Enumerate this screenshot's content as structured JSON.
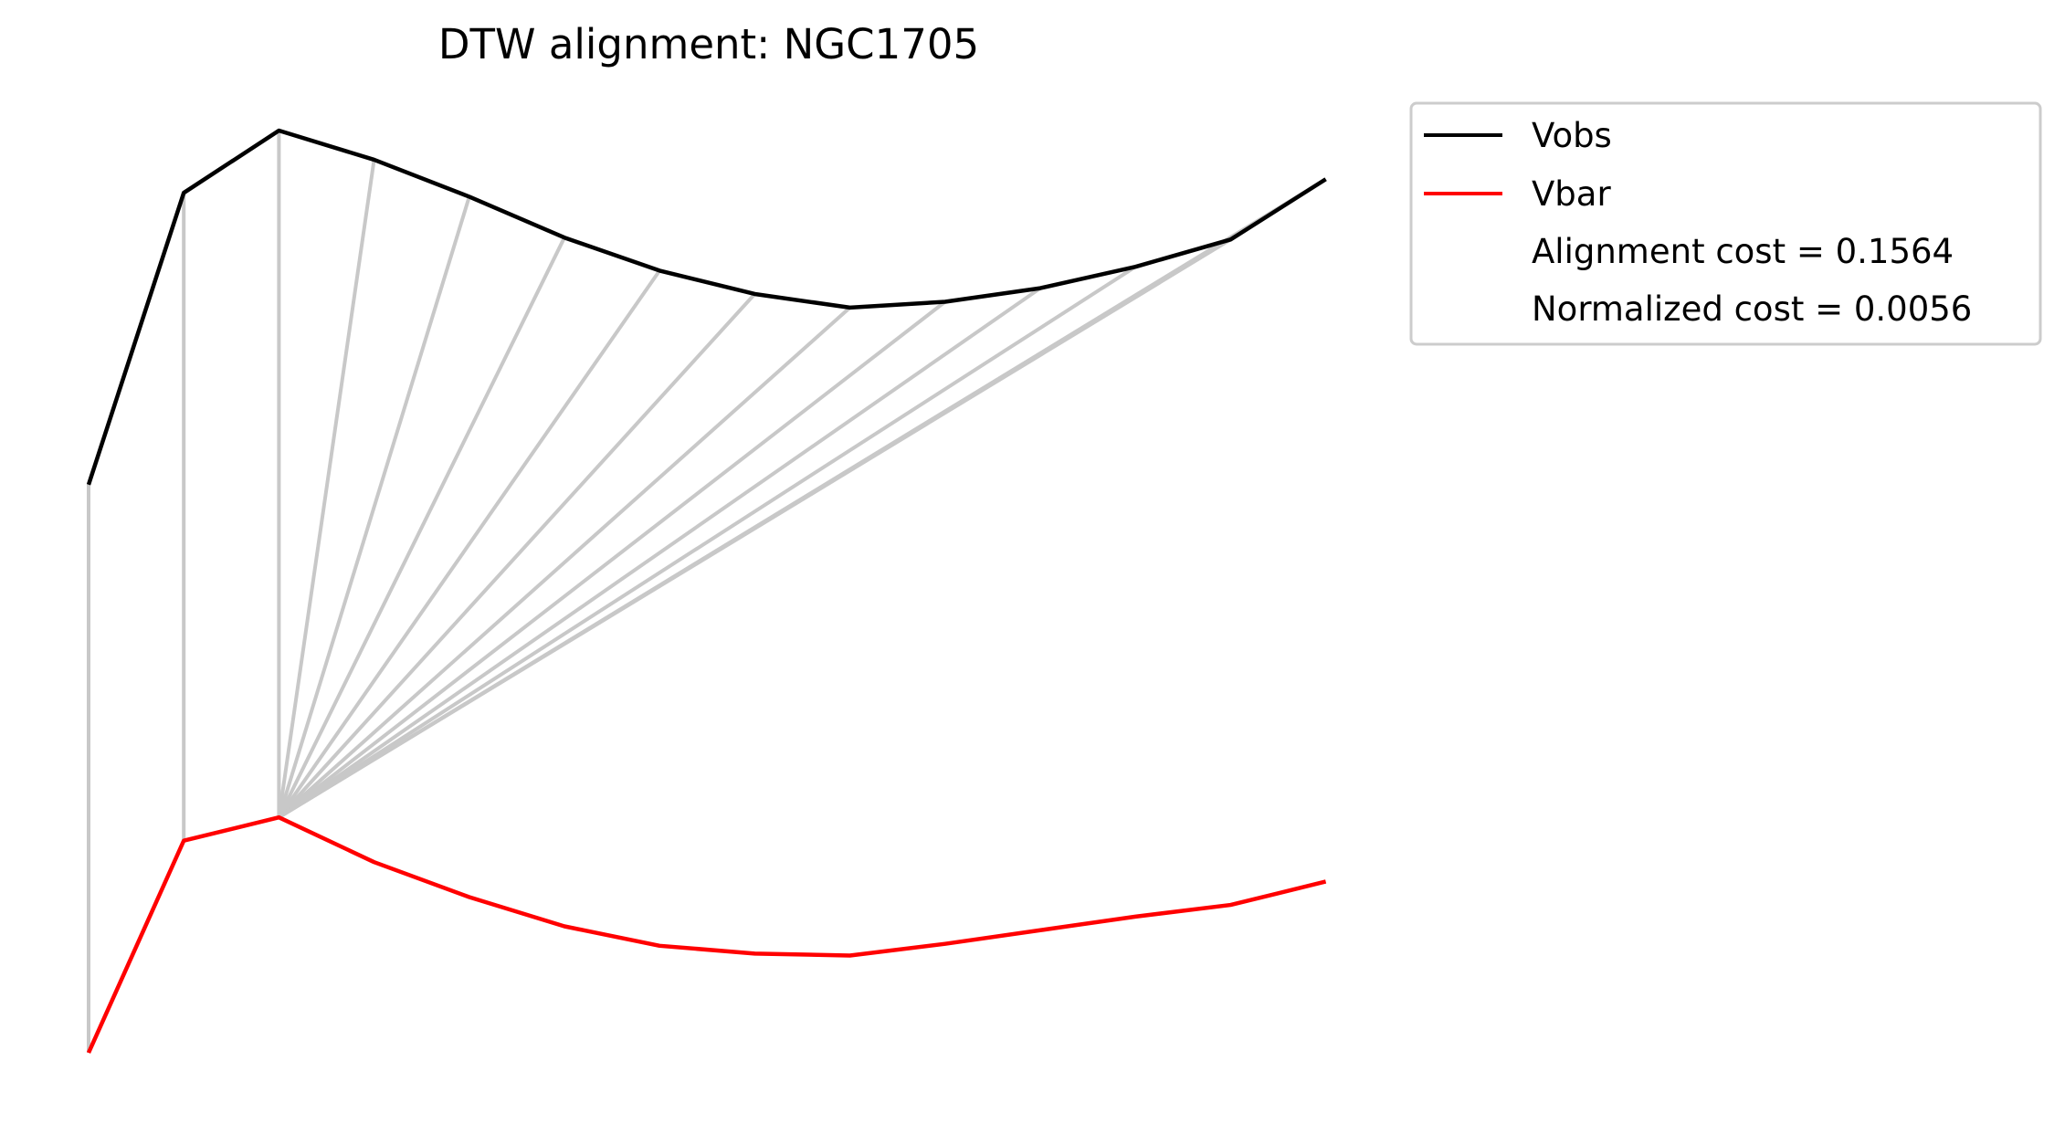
{
  "chart_data": {
    "type": "line",
    "title": "DTW alignment: NGC1705",
    "axes_visible": false,
    "legend_position": "upper-right-outside",
    "x": [
      0,
      1,
      2,
      3,
      4,
      5,
      6,
      7,
      8,
      9,
      10,
      11,
      12,
      13
    ],
    "series": [
      {
        "name": "Vobs",
        "color": "#000000",
        "values": [
          0.51,
          0.66,
          0.692,
          0.677,
          0.658,
          0.637,
          0.62,
          0.608,
          0.601,
          0.604,
          0.611,
          0.622,
          0.636,
          0.667
        ]
      },
      {
        "name": "Vbar",
        "color": "#ff0000",
        "values": [
          0.218,
          0.327,
          0.339,
          0.316,
          0.298,
          0.283,
          0.273,
          0.269,
          0.268,
          0.274,
          0.281,
          0.288,
          0.294,
          0.306
        ]
      }
    ],
    "alignment_color": "#c8c8c8",
    "alignment_pairs": [
      [
        0,
        0
      ],
      [
        1,
        1
      ],
      [
        2,
        2
      ],
      [
        3,
        2
      ],
      [
        4,
        2
      ],
      [
        5,
        2
      ],
      [
        6,
        2
      ],
      [
        7,
        2
      ],
      [
        8,
        2
      ],
      [
        9,
        2
      ],
      [
        10,
        2
      ],
      [
        11,
        2
      ],
      [
        12,
        2
      ],
      [
        13,
        2
      ]
    ],
    "legend": {
      "entries": [
        {
          "label": "Vobs",
          "color": "#000000"
        },
        {
          "label": "Vbar",
          "color": "#ff0000"
        }
      ],
      "annotations": [
        "Alignment cost = 0.1564",
        "Normalized cost = 0.0056"
      ]
    }
  }
}
